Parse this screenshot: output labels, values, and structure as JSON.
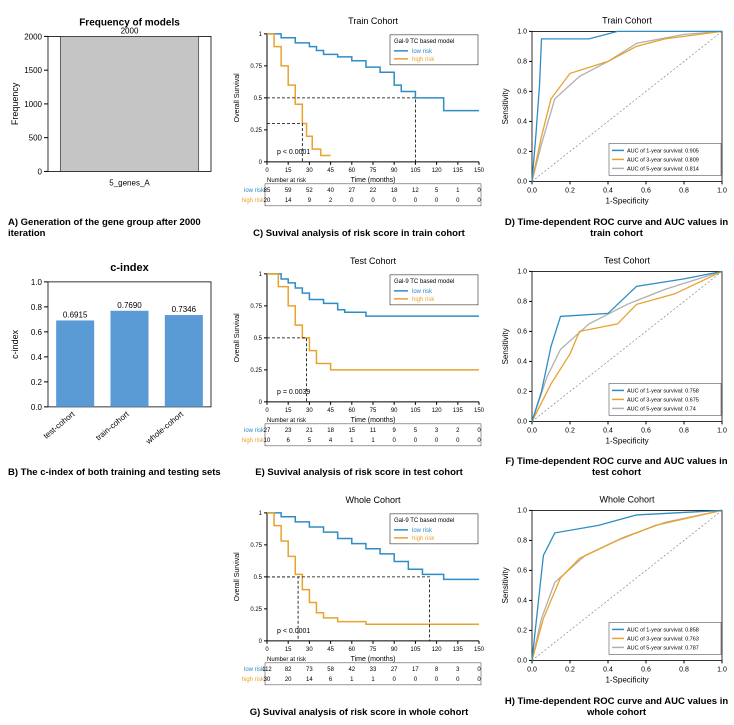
{
  "colors": {
    "bar_gray": "#c5c5c5",
    "bar_blue": "#5b9bd5",
    "line_low": "#2e8dc4",
    "line_high": "#e8a22e",
    "roc1": "#2e8dc4",
    "roc3": "#e8a22e",
    "roc5": "#b0b0b0",
    "axis": "#000",
    "grid": "#fff",
    "bg": "#fff"
  },
  "panelA": {
    "title": "Frequency of models",
    "xlabel": "5_genes_A",
    "ylabel": "Frequency",
    "bar_value": 2000,
    "bar_label": "2000",
    "ylim": [
      0,
      2000
    ],
    "yticks": [
      0,
      500,
      1000,
      1500,
      2000
    ],
    "caption": "A) Generation of the gene group after 2000 iteration"
  },
  "panelB": {
    "title": "c-index",
    "ylabel": "c-index",
    "categories": [
      "test-cohort",
      "train-cohort",
      "whole-cohort"
    ],
    "values": [
      0.6915,
      0.769,
      0.7346
    ],
    "labels": [
      "0.6915",
      "0.7690",
      "0.7346"
    ],
    "ylim": [
      0.0,
      1.0
    ],
    "yticks": [
      0.0,
      0.2,
      0.4,
      0.6,
      0.8,
      1.0
    ],
    "caption": "B) The c-index of both training and testing sets"
  },
  "survival_common": {
    "xlabel": "Time (months)",
    "ylabel": "Overall Survival",
    "legend_title": "Gal-9 TC based model",
    "legend_items": [
      "low risk",
      "high risk"
    ],
    "xlim": [
      0,
      150
    ],
    "xticks": [
      0,
      15,
      30,
      45,
      60,
      75,
      90,
      105,
      120,
      135,
      150
    ],
    "ylim": [
      0,
      1
    ],
    "yticks": [
      0,
      0.25,
      0.5,
      0.75,
      1.0
    ],
    "at_risk_label": "Number at risk"
  },
  "panelC": {
    "title": "Train Cohort",
    "p_value": "p < 0.0001",
    "low": [
      [
        0,
        1.0
      ],
      [
        10,
        0.97
      ],
      [
        20,
        0.93
      ],
      [
        30,
        0.9
      ],
      [
        35,
        0.87
      ],
      [
        40,
        0.84
      ],
      [
        50,
        0.82
      ],
      [
        60,
        0.79
      ],
      [
        70,
        0.74
      ],
      [
        80,
        0.7
      ],
      [
        90,
        0.6
      ],
      [
        95,
        0.55
      ],
      [
        105,
        0.5
      ],
      [
        120,
        0.5
      ],
      [
        125,
        0.4
      ],
      [
        150,
        0.4
      ]
    ],
    "high": [
      [
        0,
        1.0
      ],
      [
        5,
        0.9
      ],
      [
        10,
        0.75
      ],
      [
        15,
        0.6
      ],
      [
        20,
        0.45
      ],
      [
        25,
        0.3
      ],
      [
        28,
        0.2
      ],
      [
        32,
        0.1
      ],
      [
        38,
        0.05
      ],
      [
        45,
        0.05
      ]
    ],
    "dash_low": [
      105,
      0.5
    ],
    "dash_high": [
      25,
      0.3
    ],
    "at_risk_low": [
      "85",
      "59",
      "52",
      "40",
      "27",
      "22",
      "18",
      "12",
      "5",
      "1",
      "0"
    ],
    "at_risk_high": [
      "20",
      "14",
      "9",
      "2",
      "0",
      "0",
      "0",
      "0",
      "0",
      "0",
      "0"
    ],
    "caption": "C) Suvival analysis of risk score in train cohort"
  },
  "panelE": {
    "title": "Test Cohort",
    "p_value": "p = 0.0039",
    "low": [
      [
        0,
        1.0
      ],
      [
        10,
        0.96
      ],
      [
        15,
        0.93
      ],
      [
        20,
        0.89
      ],
      [
        25,
        0.85
      ],
      [
        30,
        0.8
      ],
      [
        40,
        0.77
      ],
      [
        50,
        0.72
      ],
      [
        55,
        0.7
      ],
      [
        70,
        0.67
      ],
      [
        90,
        0.67
      ],
      [
        120,
        0.67
      ],
      [
        150,
        0.67
      ]
    ],
    "high": [
      [
        0,
        1.0
      ],
      [
        8,
        0.9
      ],
      [
        15,
        0.75
      ],
      [
        20,
        0.6
      ],
      [
        25,
        0.5
      ],
      [
        30,
        0.4
      ],
      [
        35,
        0.3
      ],
      [
        45,
        0.25
      ],
      [
        60,
        0.25
      ],
      [
        90,
        0.25
      ],
      [
        150,
        0.25
      ]
    ],
    "dash_high": [
      28,
      0.5
    ],
    "at_risk_low": [
      "27",
      "23",
      "21",
      "18",
      "15",
      "11",
      "9",
      "5",
      "3",
      "2",
      "0"
    ],
    "at_risk_high": [
      "10",
      "6",
      "5",
      "4",
      "1",
      "1",
      "0",
      "0",
      "0",
      "0",
      "0"
    ],
    "caption": "E) Suvival analysis of risk score in test cohort"
  },
  "panelG": {
    "title": "Whole Cohort",
    "p_value": "p < 0.0001",
    "low": [
      [
        0,
        1.0
      ],
      [
        10,
        0.97
      ],
      [
        20,
        0.93
      ],
      [
        30,
        0.89
      ],
      [
        40,
        0.85
      ],
      [
        50,
        0.8
      ],
      [
        60,
        0.76
      ],
      [
        70,
        0.72
      ],
      [
        80,
        0.68
      ],
      [
        90,
        0.62
      ],
      [
        100,
        0.56
      ],
      [
        110,
        0.52
      ],
      [
        125,
        0.48
      ],
      [
        150,
        0.48
      ]
    ],
    "high": [
      [
        0,
        1.0
      ],
      [
        5,
        0.9
      ],
      [
        10,
        0.78
      ],
      [
        15,
        0.66
      ],
      [
        20,
        0.52
      ],
      [
        25,
        0.4
      ],
      [
        30,
        0.3
      ],
      [
        35,
        0.22
      ],
      [
        40,
        0.18
      ],
      [
        50,
        0.15
      ],
      [
        70,
        0.13
      ],
      [
        100,
        0.13
      ],
      [
        150,
        0.13
      ]
    ],
    "dash_low": [
      115,
      0.5
    ],
    "dash_high": [
      22,
      0.5
    ],
    "at_risk_low": [
      "112",
      "82",
      "73",
      "58",
      "42",
      "33",
      "27",
      "17",
      "8",
      "3",
      "0"
    ],
    "at_risk_high": [
      "30",
      "20",
      "14",
      "6",
      "1",
      "1",
      "0",
      "0",
      "0",
      "0",
      "0"
    ],
    "caption": "G) Suvival analysis of risk score in whole cohort"
  },
  "roc_common": {
    "xlabel": "1-Specificity",
    "ylabel": "Sensitivity",
    "lim": [
      0,
      1
    ],
    "ticks": [
      0.0,
      0.2,
      0.4,
      0.6,
      0.8,
      1.0
    ],
    "legend_labels": [
      "AUC of 1-year survival:",
      "AUC of 3-year survival:",
      "AUC of 5-year survival:"
    ]
  },
  "panelD": {
    "title": "Train Cohort",
    "auc": [
      "0.905",
      "0.809",
      "0.814"
    ],
    "roc1": [
      [
        0,
        0
      ],
      [
        0.02,
        0.3
      ],
      [
        0.04,
        0.65
      ],
      [
        0.05,
        0.95
      ],
      [
        0.3,
        0.95
      ],
      [
        0.45,
        1.0
      ],
      [
        1,
        1
      ]
    ],
    "roc3": [
      [
        0,
        0
      ],
      [
        0.05,
        0.3
      ],
      [
        0.1,
        0.55
      ],
      [
        0.2,
        0.72
      ],
      [
        0.4,
        0.8
      ],
      [
        0.55,
        0.9
      ],
      [
        0.7,
        0.95
      ],
      [
        1,
        1
      ]
    ],
    "roc5": [
      [
        0,
        0
      ],
      [
        0.05,
        0.25
      ],
      [
        0.12,
        0.55
      ],
      [
        0.25,
        0.7
      ],
      [
        0.4,
        0.8
      ],
      [
        0.55,
        0.92
      ],
      [
        0.8,
        0.98
      ],
      [
        1,
        1
      ]
    ],
    "caption": "D) Time-dependent ROC curve and AUC values in train cohort"
  },
  "panelF": {
    "title": "Test Cohort",
    "auc": [
      "0.758",
      "0.675",
      "0.74"
    ],
    "roc1": [
      [
        0,
        0
      ],
      [
        0.05,
        0.2
      ],
      [
        0.1,
        0.5
      ],
      [
        0.15,
        0.7
      ],
      [
        0.4,
        0.72
      ],
      [
        0.55,
        0.9
      ],
      [
        0.8,
        0.95
      ],
      [
        1,
        1
      ]
    ],
    "roc3": [
      [
        0,
        0
      ],
      [
        0.1,
        0.25
      ],
      [
        0.2,
        0.45
      ],
      [
        0.25,
        0.6
      ],
      [
        0.45,
        0.65
      ],
      [
        0.55,
        0.78
      ],
      [
        0.75,
        0.85
      ],
      [
        1,
        1
      ]
    ],
    "roc5": [
      [
        0,
        0
      ],
      [
        0.08,
        0.3
      ],
      [
        0.15,
        0.48
      ],
      [
        0.3,
        0.65
      ],
      [
        0.5,
        0.78
      ],
      [
        0.7,
        0.88
      ],
      [
        1,
        1
      ]
    ],
    "caption": "F) Time-dependent ROC curve and AUC values in test cohort"
  },
  "panelH": {
    "title": "Whole Cohort",
    "auc": [
      "0.858",
      "0.763",
      "0.787"
    ],
    "roc1": [
      [
        0,
        0
      ],
      [
        0.03,
        0.35
      ],
      [
        0.06,
        0.7
      ],
      [
        0.12,
        0.85
      ],
      [
        0.35,
        0.9
      ],
      [
        0.55,
        0.97
      ],
      [
        1,
        1
      ]
    ],
    "roc3": [
      [
        0,
        0
      ],
      [
        0.06,
        0.28
      ],
      [
        0.15,
        0.55
      ],
      [
        0.25,
        0.68
      ],
      [
        0.45,
        0.8
      ],
      [
        0.65,
        0.9
      ],
      [
        1,
        1
      ]
    ],
    "roc5": [
      [
        0,
        0
      ],
      [
        0.05,
        0.28
      ],
      [
        0.12,
        0.52
      ],
      [
        0.28,
        0.7
      ],
      [
        0.48,
        0.82
      ],
      [
        0.7,
        0.92
      ],
      [
        1,
        1
      ]
    ],
    "caption": "H) Time-dependent ROC curve and AUC values in whole cohort"
  }
}
